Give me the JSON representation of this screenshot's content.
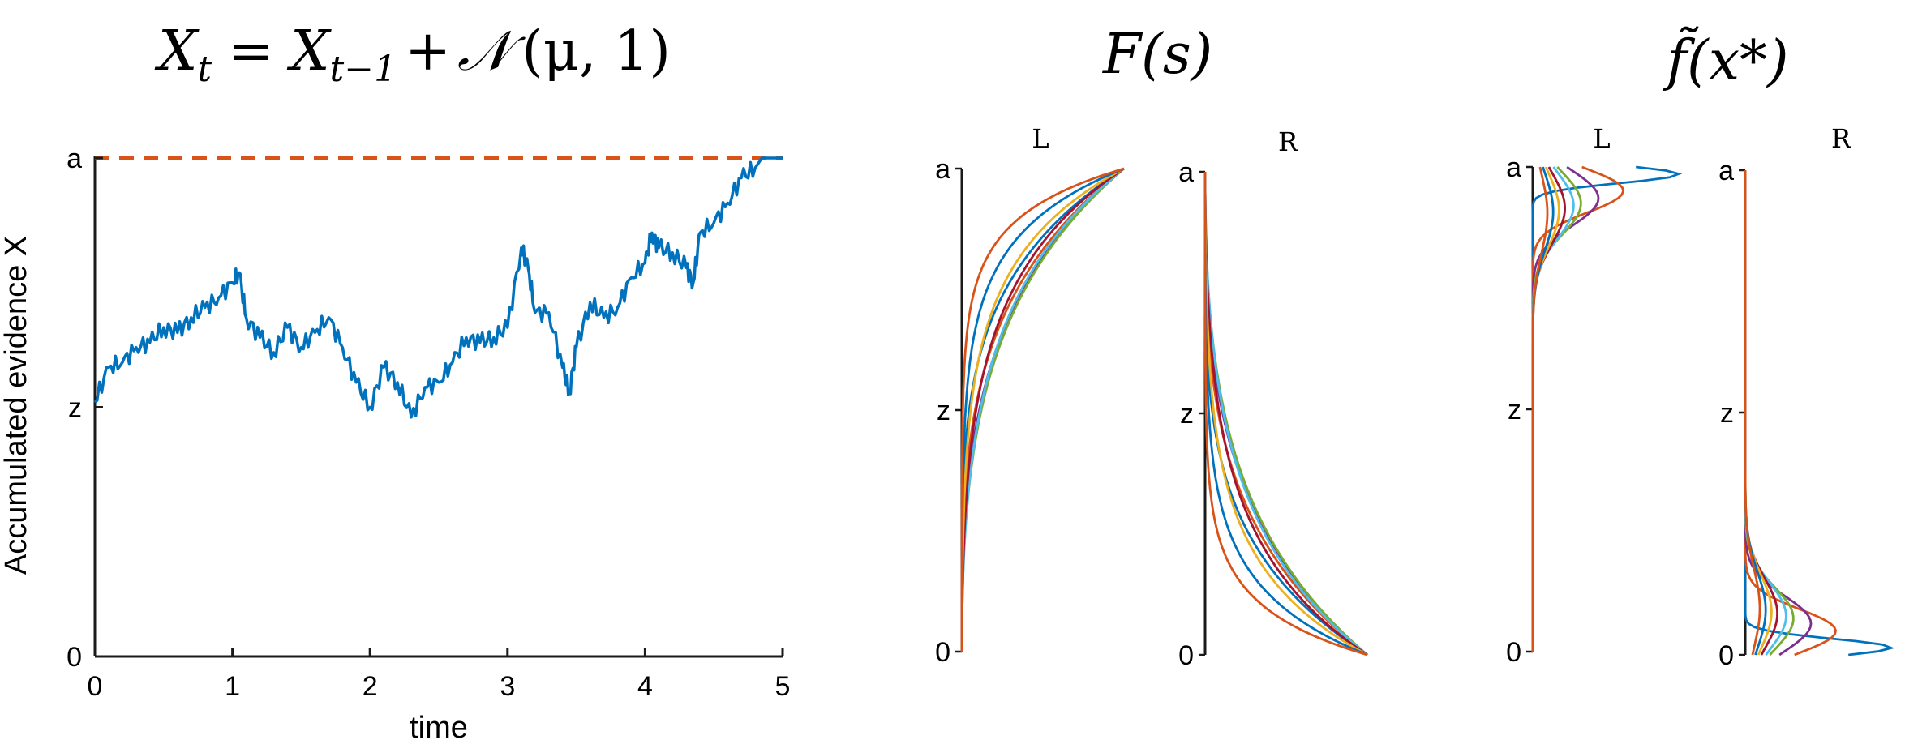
{
  "equations": {
    "eq1": {
      "lhs": "X",
      "lhs_sub": "t",
      "eq": "=",
      "var": "X",
      "var_sub": "t−1",
      "plus": "+",
      "dist": "𝒩",
      "args": "(μ, 1)"
    },
    "eq2": {
      "text": "F(s)"
    },
    "eq3": {
      "text": "f̃(x*)"
    }
  },
  "colors": {
    "trace": "#0072BD",
    "threshold": "#D95319",
    "series": [
      "#0072BD",
      "#D95319",
      "#7E2F8E",
      "#77AC30",
      "#4DBEEE",
      "#A2142F",
      "#EDB120"
    ]
  },
  "chart_data": [
    {
      "type": "line",
      "xlabel": "time",
      "ylabel": "Accumulated evidence X",
      "xlim": [
        0,
        5
      ],
      "xticks": [
        "0",
        "1",
        "2",
        "3",
        "4",
        "5"
      ],
      "yticks": [
        "0",
        "z",
        "a"
      ],
      "ytick_values": [
        0,
        0.5,
        1
      ],
      "threshold": {
        "y": 1,
        "style": "dashed"
      },
      "series": [
        {
          "x": [
            0,
            0.1,
            0.2,
            0.3,
            0.4,
            0.5,
            0.6,
            0.7,
            0.8,
            0.9,
            1.0,
            1.05,
            1.1,
            1.2,
            1.3,
            1.4,
            1.5,
            1.6,
            1.7,
            1.8,
            1.9,
            2.0,
            2.1,
            2.2,
            2.3,
            2.4,
            2.5,
            2.6,
            2.7,
            2.8,
            2.9,
            3.0,
            3.1,
            3.15,
            3.2,
            3.3,
            3.4,
            3.45,
            3.5,
            3.6,
            3.7,
            3.8,
            3.9,
            4.0,
            4.05,
            4.1,
            4.2,
            4.3,
            4.35,
            4.4,
            4.5,
            4.6,
            4.7,
            4.8,
            4.85,
            4.9,
            5.0
          ],
          "y": [
            0.51,
            0.58,
            0.59,
            0.62,
            0.63,
            0.66,
            0.65,
            0.68,
            0.7,
            0.72,
            0.75,
            0.77,
            0.68,
            0.64,
            0.61,
            0.66,
            0.62,
            0.65,
            0.68,
            0.62,
            0.55,
            0.5,
            0.58,
            0.55,
            0.48,
            0.54,
            0.55,
            0.59,
            0.64,
            0.63,
            0.64,
            0.66,
            0.82,
            0.78,
            0.69,
            0.69,
            0.58,
            0.53,
            0.62,
            0.71,
            0.68,
            0.7,
            0.76,
            0.79,
            0.85,
            0.82,
            0.81,
            0.78,
            0.75,
            0.85,
            0.87,
            0.91,
            0.96,
            0.98,
            1.0,
            1.0,
            1.0
          ]
        }
      ]
    },
    {
      "type": "line",
      "title": "F(s)",
      "panels": [
        {
          "label": "L",
          "yticks": [
            "0",
            "z",
            "a"
          ],
          "family": "cdf_left",
          "k": [
            0.3,
            0.5,
            0.8,
            1.2,
            1.8,
            2.7,
            4.0,
            6.0,
            9.0
          ]
        },
        {
          "label": "R",
          "yticks": [
            "0",
            "z",
            "a"
          ],
          "family": "cdf_right",
          "k": [
            0.3,
            0.5,
            0.8,
            1.2,
            1.8,
            2.7,
            4.0,
            6.0,
            9.0
          ]
        }
      ]
    },
    {
      "type": "line",
      "title": "f̃(x*)",
      "panels": [
        {
          "label": "L",
          "yticks": [
            "0",
            "z",
            "a"
          ],
          "family": "pdf_left",
          "peaks": [
            1.0,
            0.62,
            0.45,
            0.33,
            0.28,
            0.22,
            0.18,
            0.14,
            0.1
          ]
        },
        {
          "label": "R",
          "yticks": [
            "0",
            "z",
            "a"
          ],
          "family": "pdf_right",
          "peaks": [
            1.0,
            0.62,
            0.45,
            0.33,
            0.28,
            0.22,
            0.18,
            0.14,
            0.1
          ]
        }
      ]
    }
  ]
}
